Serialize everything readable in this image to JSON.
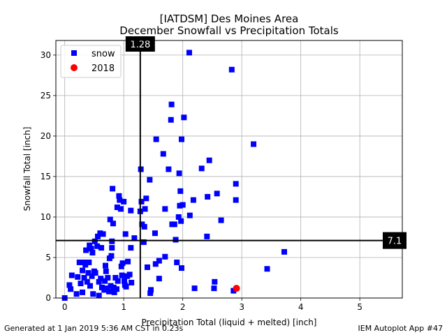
{
  "chart_data": {
    "type": "scatter",
    "title": "[IATDSM] Des Moines Area",
    "subtitle": "December Snowfall vs Precipitation Totals",
    "xlabel": "Precipitation Total (liquid + melted) [inch]",
    "ylabel": "Snowfall Total [inch]",
    "xlim": [
      -0.15,
      5.72
    ],
    "ylim": [
      0,
      31.8
    ],
    "xticks": [
      "0",
      "1",
      "2",
      "3",
      "4",
      "5"
    ],
    "yticks": [
      "0",
      "5",
      "10",
      "15",
      "20",
      "25",
      "30"
    ],
    "grid": true,
    "legend_position": "top-left",
    "series": [
      {
        "name": "snow",
        "color": "#0000ff",
        "marker": "square",
        "points": [
          [
            0.0,
            0.0
          ],
          [
            0.08,
            1.6
          ],
          [
            0.1,
            1.1
          ],
          [
            0.12,
            2.8
          ],
          [
            0.2,
            0.5
          ],
          [
            0.22,
            2.6
          ],
          [
            0.25,
            4.4
          ],
          [
            0.27,
            1.8
          ],
          [
            0.3,
            3.4
          ],
          [
            0.3,
            0.7
          ],
          [
            0.32,
            4.4
          ],
          [
            0.33,
            2.5
          ],
          [
            0.35,
            4.1
          ],
          [
            0.36,
            5.9
          ],
          [
            0.38,
            2.0
          ],
          [
            0.4,
            3.1
          ],
          [
            0.41,
            4.4
          ],
          [
            0.42,
            6.5
          ],
          [
            0.43,
            1.5
          ],
          [
            0.45,
            6.1
          ],
          [
            0.46,
            2.7
          ],
          [
            0.47,
            5.6
          ],
          [
            0.48,
            0.5
          ],
          [
            0.5,
            3.3
          ],
          [
            0.51,
            7.0
          ],
          [
            0.52,
            3.1
          ],
          [
            0.55,
            6.4
          ],
          [
            0.56,
            7.6
          ],
          [
            0.58,
            0.3
          ],
          [
            0.58,
            2.0
          ],
          [
            0.6,
            8.0
          ],
          [
            0.61,
            2.4
          ],
          [
            0.62,
            6.2
          ],
          [
            0.63,
            1.3
          ],
          [
            0.65,
            7.9
          ],
          [
            0.67,
            1.0
          ],
          [
            0.68,
            2.1
          ],
          [
            0.69,
            4.0
          ],
          [
            0.7,
            3.3
          ],
          [
            0.71,
            1.2
          ],
          [
            0.73,
            2.5
          ],
          [
            0.75,
            0.8
          ],
          [
            0.76,
            4.9
          ],
          [
            0.77,
            9.7
          ],
          [
            0.78,
            1.5
          ],
          [
            0.79,
            5.2
          ],
          [
            0.8,
            7.0
          ],
          [
            0.8,
            6.2
          ],
          [
            0.81,
            13.5
          ],
          [
            0.82,
            9.2
          ],
          [
            0.83,
            1.3
          ],
          [
            0.84,
            0.7
          ],
          [
            0.86,
            2.5
          ],
          [
            0.88,
            1.1
          ],
          [
            0.89,
            11.2
          ],
          [
            0.9,
            2.1
          ],
          [
            0.92,
            12.6
          ],
          [
            0.93,
            12.1
          ],
          [
            0.95,
            11.0
          ],
          [
            0.96,
            3.9
          ],
          [
            0.97,
            2.8
          ],
          [
            0.98,
            4.3
          ],
          [
            1.0,
            11.9
          ],
          [
            1.01,
            2.1
          ],
          [
            1.02,
            1.6
          ],
          [
            1.03,
            7.9
          ],
          [
            1.04,
            1.4
          ],
          [
            1.06,
            2.7
          ],
          [
            1.07,
            4.5
          ],
          [
            1.1,
            2.9
          ],
          [
            1.12,
            10.8
          ],
          [
            1.12,
            6.2
          ],
          [
            1.13,
            1.9
          ],
          [
            1.18,
            7.4
          ],
          [
            1.28,
            10.7
          ],
          [
            1.29,
            15.9
          ],
          [
            1.3,
            11.9
          ],
          [
            1.31,
            9.1
          ],
          [
            1.34,
            6.9
          ],
          [
            1.35,
            8.8
          ],
          [
            1.36,
            11.0
          ],
          [
            1.38,
            12.3
          ],
          [
            1.4,
            3.8
          ],
          [
            1.44,
            14.6
          ],
          [
            1.45,
            0.6
          ],
          [
            1.46,
            1.0
          ],
          [
            1.53,
            8.0
          ],
          [
            1.54,
            4.2
          ],
          [
            1.55,
            19.6
          ],
          [
            1.6,
            2.4
          ],
          [
            1.6,
            4.6
          ],
          [
            1.67,
            17.8
          ],
          [
            1.7,
            11.0
          ],
          [
            1.7,
            5.1
          ],
          [
            1.76,
            15.9
          ],
          [
            1.81,
            23.9
          ],
          [
            1.8,
            22.0
          ],
          [
            1.82,
            9.1
          ],
          [
            1.86,
            9.1
          ],
          [
            1.88,
            7.2
          ],
          [
            1.9,
            4.4
          ],
          [
            1.93,
            10.0
          ],
          [
            1.94,
            15.4
          ],
          [
            1.95,
            11.4
          ],
          [
            1.96,
            13.2
          ],
          [
            1.97,
            9.5
          ],
          [
            1.98,
            19.6
          ],
          [
            1.98,
            3.7
          ],
          [
            2.0,
            11.5
          ],
          [
            2.02,
            22.3
          ],
          [
            2.11,
            30.3
          ],
          [
            2.12,
            10.2
          ],
          [
            2.18,
            12.1
          ],
          [
            2.2,
            1.2
          ],
          [
            2.32,
            16.0
          ],
          [
            2.41,
            7.6
          ],
          [
            2.42,
            12.5
          ],
          [
            2.45,
            17.0
          ],
          [
            2.53,
            1.2
          ],
          [
            2.54,
            2.0
          ],
          [
            2.58,
            12.9
          ],
          [
            2.65,
            9.6
          ],
          [
            2.83,
            28.2
          ],
          [
            2.86,
            0.9
          ],
          [
            2.9,
            14.1
          ],
          [
            2.9,
            12.1
          ],
          [
            3.2,
            19.0
          ],
          [
            3.43,
            3.6
          ],
          [
            3.72,
            5.7
          ]
        ]
      },
      {
        "name": "2018",
        "color": "#ff0000",
        "marker": "circle",
        "points": [
          [
            2.91,
            1.2
          ]
        ]
      }
    ],
    "reference_lines": [
      {
        "orientation": "vertical",
        "value": 1.28,
        "label": "1.28"
      },
      {
        "orientation": "horizontal",
        "value": 7.1,
        "label": "7.1"
      }
    ]
  },
  "footer": {
    "left": "Generated at 1 Jan 2019 5:36 AM CST in 0.23s",
    "right": "IEM Autoplot App #47"
  }
}
